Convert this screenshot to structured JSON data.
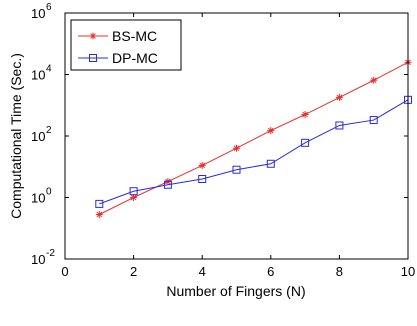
{
  "chart_data": {
    "type": "line",
    "xlabel": "Number of Fingers (N)",
    "ylabel": "Computational Time (Sec.)",
    "xlim": [
      0,
      10
    ],
    "ylim_log10": [
      -2,
      6
    ],
    "yscale": "log",
    "grid": false,
    "legend_position": "top-left",
    "x_ticks": [
      "0",
      "2",
      "4",
      "6",
      "8",
      "10"
    ],
    "y_ticks": [
      {
        "base": "10",
        "exp": "-2",
        "value": 0.01
      },
      {
        "base": "10",
        "exp": "0",
        "value": 1
      },
      {
        "base": "10",
        "exp": "2",
        "value": 100
      },
      {
        "base": "10",
        "exp": "4",
        "value": 10000
      },
      {
        "base": "10",
        "exp": "6",
        "value": 1000000
      }
    ],
    "x": [
      1,
      2,
      3,
      4,
      5,
      6,
      7,
      8,
      9,
      10
    ],
    "series": [
      {
        "name": "BS-MC",
        "color": "#e8302a",
        "marker": "star",
        "values": [
          0.28,
          1.0,
          3.3,
          11,
          40,
          150,
          500,
          1800,
          6500,
          25000
        ]
      },
      {
        "name": "DP-MC",
        "color": "#2b2bd9",
        "marker": "square",
        "values": [
          0.62,
          1.6,
          2.6,
          4.0,
          8.0,
          12.5,
          60,
          220,
          330,
          1500
        ]
      }
    ]
  }
}
